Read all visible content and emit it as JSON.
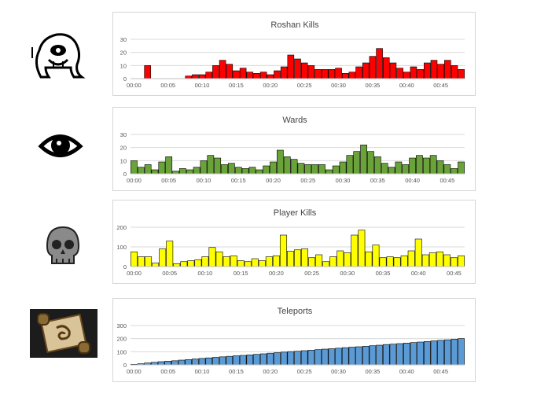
{
  "icons": [
    {
      "name": "roshan-icon"
    },
    {
      "name": "ward-eye-icon"
    },
    {
      "name": "skull-icon"
    },
    {
      "name": "teleport-scroll-icon"
    }
  ],
  "x_ticks": [
    "00:00",
    "00:05",
    "00:10",
    "00:15",
    "00:20",
    "00:25",
    "00:30",
    "00:35",
    "00:40",
    "00:45"
  ],
  "chart_data": [
    {
      "type": "bar",
      "title": "Roshan Kills",
      "color": "#ff0000",
      "ylim": [
        0,
        30
      ],
      "yticks": [
        "0",
        "10",
        "20",
        "30"
      ],
      "values": [
        0,
        0,
        10,
        0,
        0,
        0,
        0,
        0,
        2,
        3,
        3,
        5,
        10,
        14,
        11,
        6,
        8,
        5,
        4,
        5,
        3,
        6,
        9,
        18,
        15,
        12,
        10,
        7,
        7,
        7,
        8,
        4,
        5,
        9,
        12,
        17,
        23,
        16,
        12,
        8,
        5,
        9,
        7,
        12,
        14,
        11,
        14,
        10,
        7
      ],
      "grid": true,
      "legend": "none"
    },
    {
      "type": "bar",
      "title": "Wards",
      "color": "#6aa339",
      "ylim": [
        0,
        30
      ],
      "yticks": [
        "0",
        "10",
        "20",
        "30"
      ],
      "values": [
        10,
        5,
        7,
        3,
        9,
        13,
        2,
        4,
        3,
        5,
        10,
        14,
        12,
        7,
        8,
        5,
        4,
        5,
        3,
        6,
        9,
        18,
        13,
        11,
        8,
        7,
        7,
        7,
        3,
        6,
        9,
        14,
        17,
        22,
        17,
        13,
        8,
        5,
        9,
        7,
        12,
        14,
        12,
        14,
        10,
        7,
        4,
        9
      ],
      "grid": true,
      "legend": "none"
    },
    {
      "type": "bar",
      "title": "Player Kills",
      "color": "#ffff00",
      "ylim": [
        0,
        200
      ],
      "yticks": [
        "0",
        "100",
        "200"
      ],
      "values": [
        75,
        50,
        50,
        18,
        90,
        130,
        15,
        25,
        30,
        35,
        50,
        97,
        75,
        50,
        55,
        30,
        25,
        40,
        30,
        50,
        55,
        160,
        78,
        85,
        90,
        45,
        60,
        25,
        50,
        80,
        70,
        160,
        185,
        75,
        110,
        45,
        50,
        45,
        55,
        80,
        140,
        60,
        70,
        75,
        60,
        45,
        55
      ],
      "grid": true,
      "legend": "none"
    },
    {
      "type": "bar",
      "title": "Teleports",
      "color": "#5b9bd5",
      "ylim": [
        0,
        300
      ],
      "yticks": [
        "0",
        "100",
        "200",
        "300"
      ],
      "values": [
        4,
        8,
        14,
        19,
        24,
        28,
        31,
        36,
        40,
        45,
        49,
        53,
        57,
        61,
        65,
        69,
        72,
        76,
        80,
        84,
        89,
        93,
        97,
        101,
        104,
        108,
        112,
        116,
        120,
        123,
        127,
        131,
        135,
        138,
        142,
        146,
        150,
        155,
        158,
        162,
        166,
        170,
        174,
        178,
        183,
        187,
        191,
        196,
        200
      ],
      "grid": true,
      "legend": "none"
    }
  ]
}
